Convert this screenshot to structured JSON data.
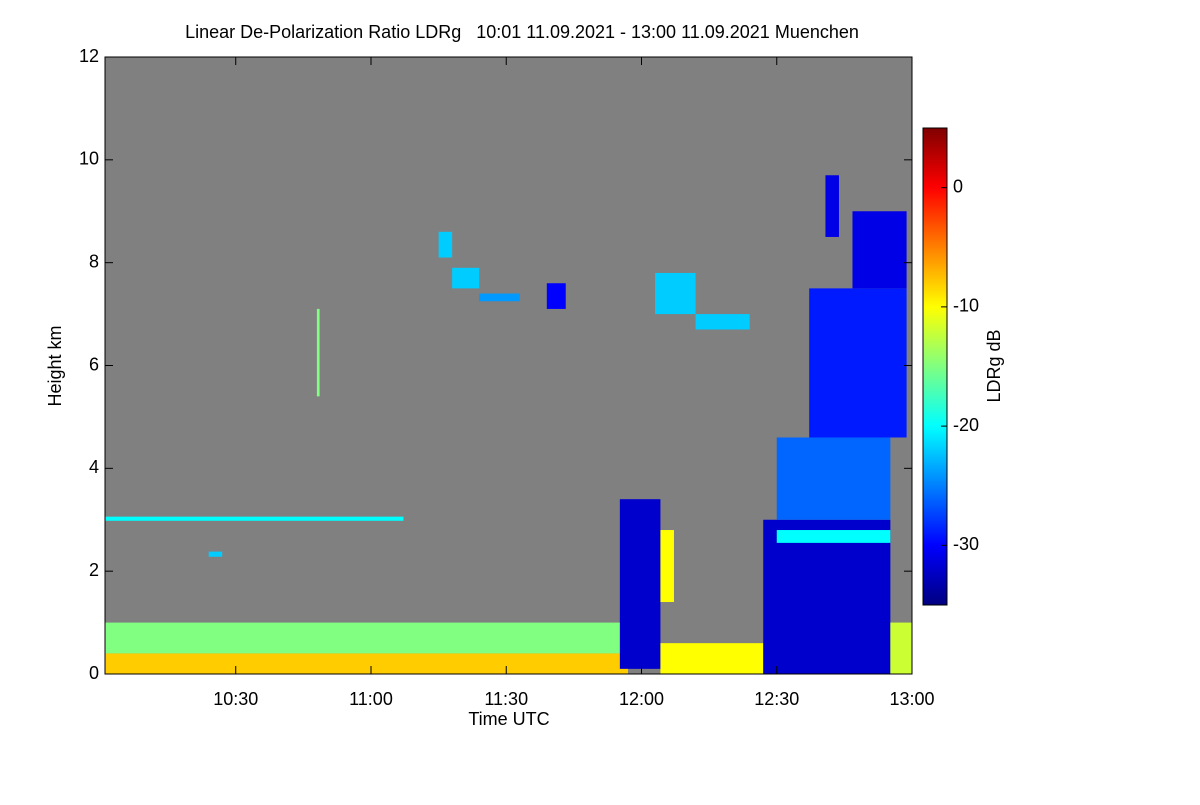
{
  "chart_data": {
    "type": "heatmap",
    "title": "Linear De-Polarization Ratio LDRg   10:01 11.09.2021 - 13:00 11.09.2021 Muenchen",
    "x_label": "Time UTC",
    "y_label": "Height km",
    "colorbar_label": "LDRg dB",
    "xlim": [
      10.0167,
      13.0
    ],
    "xticks": [
      {
        "value": 10.5,
        "label": "10:30"
      },
      {
        "value": 11.0,
        "label": "11:00"
      },
      {
        "value": 11.5,
        "label": "11:30"
      },
      {
        "value": 12.0,
        "label": "12:00"
      },
      {
        "value": 12.5,
        "label": "12:30"
      },
      {
        "value": 13.0,
        "label": "13:00"
      }
    ],
    "ylim": [
      0,
      12
    ],
    "yticks": [
      0,
      2,
      4,
      6,
      8,
      10,
      12
    ],
    "clim": [
      -35,
      5
    ],
    "cticks": [
      0,
      -10,
      -20,
      -30
    ],
    "colormap": [
      "#000080",
      "#0000ff",
      "#0080ff",
      "#00ffff",
      "#80ff80",
      "#ffff00",
      "#ff8000",
      "#ff0000",
      "#800000"
    ],
    "missing_color": "#808080",
    "regions": [
      {
        "x": [
          10.0167,
          11.95
        ],
        "y": [
          0.4,
          1.0
        ],
        "value": -15
      },
      {
        "x": [
          10.0167,
          11.95
        ],
        "y": [
          0,
          0.4
        ],
        "value": -8
      },
      {
        "x": [
          10.0167,
          11.12
        ],
        "y": [
          2.98,
          3.06
        ],
        "value": -20
      },
      {
        "x": [
          10.4,
          10.45
        ],
        "y": [
          2.28,
          2.38
        ],
        "value": -22
      },
      {
        "x": [
          10.8,
          10.81
        ],
        "y": [
          5.4,
          7.1
        ],
        "value": -15
      },
      {
        "x": [
          11.25,
          11.3
        ],
        "y": [
          8.1,
          8.6
        ],
        "value": -22
      },
      {
        "x": [
          11.3,
          11.4
        ],
        "y": [
          7.5,
          7.9
        ],
        "value": -22
      },
      {
        "x": [
          11.4,
          11.55
        ],
        "y": [
          7.25,
          7.4
        ],
        "value": -24
      },
      {
        "x": [
          11.65,
          11.72
        ],
        "y": [
          7.1,
          7.6
        ],
        "value": -30
      },
      {
        "x": [
          12.05,
          12.2
        ],
        "y": [
          7.0,
          7.8
        ],
        "value": -22
      },
      {
        "x": [
          12.2,
          12.4
        ],
        "y": [
          6.7,
          7.0
        ],
        "value": -22
      },
      {
        "x": [
          11.92,
          12.07
        ],
        "y": [
          0.1,
          3.4
        ],
        "value": -32
      },
      {
        "x": [
          12.07,
          12.12
        ],
        "y": [
          1.4,
          2.8
        ],
        "value": -10
      },
      {
        "x": [
          12.07,
          12.45
        ],
        "y": [
          0,
          0.6
        ],
        "value": -10
      },
      {
        "x": [
          12.45,
          12.92
        ],
        "y": [
          0,
          3.0
        ],
        "value": -32
      },
      {
        "x": [
          12.5,
          12.92
        ],
        "y": [
          3.0,
          4.6
        ],
        "value": -26
      },
      {
        "x": [
          12.62,
          12.98
        ],
        "y": [
          4.6,
          7.5
        ],
        "value": -29
      },
      {
        "x": [
          12.78,
          12.98
        ],
        "y": [
          7.5,
          9.0
        ],
        "value": -31
      },
      {
        "x": [
          12.68,
          12.73
        ],
        "y": [
          8.5,
          9.7
        ],
        "value": -31
      },
      {
        "x": [
          12.5,
          12.92
        ],
        "y": [
          2.55,
          2.8
        ],
        "value": -20
      },
      {
        "x": [
          12.92,
          13.0
        ],
        "y": [
          0,
          1.0
        ],
        "value": -12
      }
    ]
  }
}
